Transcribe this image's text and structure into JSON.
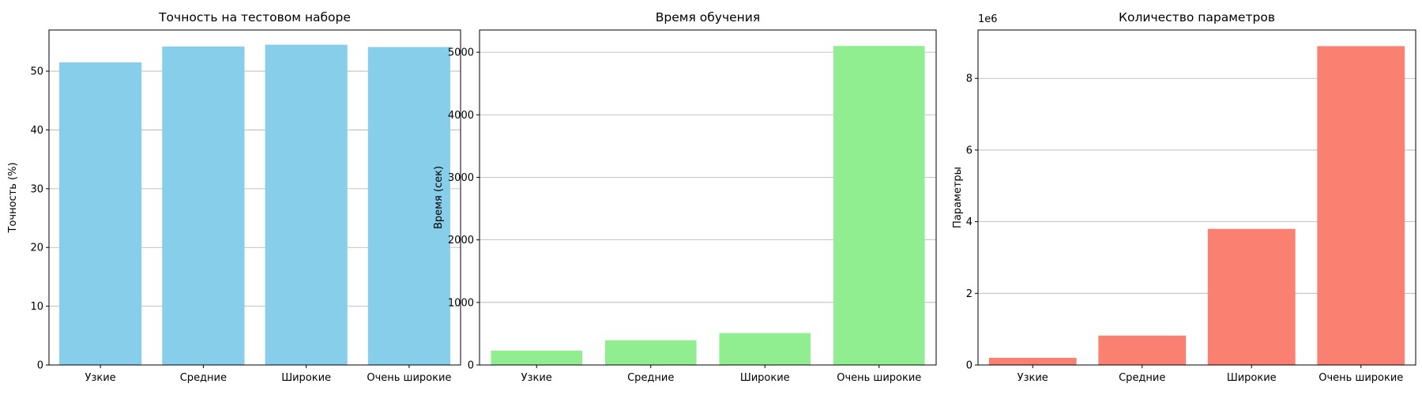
{
  "chart_data": [
    {
      "type": "bar",
      "title": "Точность на тестовом наборе",
      "xlabel": "",
      "ylabel": "Точность (%)",
      "categories": [
        "Узкие",
        "Средние",
        "Широкие",
        "Очень широкие"
      ],
      "values": [
        51.5,
        54.2,
        54.5,
        54.1
      ],
      "ylim": [
        0,
        57
      ],
      "yticks": [
        0,
        10,
        20,
        30,
        40,
        50
      ],
      "ytick_labels": [
        "0",
        "10",
        "20",
        "30",
        "40",
        "50"
      ],
      "offset_label": "",
      "color": "#87ceeb",
      "grid": "y"
    },
    {
      "type": "bar",
      "title": "Время обучения",
      "xlabel": "",
      "ylabel": "Время (сек)",
      "categories": [
        "Узкие",
        "Средние",
        "Широкие",
        "Очень широкие"
      ],
      "values": [
        230,
        395,
        510,
        5100
      ],
      "ylim": [
        0,
        5355
      ],
      "yticks": [
        0,
        1000,
        2000,
        3000,
        4000,
        5000
      ],
      "ytick_labels": [
        "0",
        "1000",
        "2000",
        "3000",
        "4000",
        "5000"
      ],
      "offset_label": "",
      "color": "#90ee90",
      "grid": "y"
    },
    {
      "type": "bar",
      "title": "Количество параметров",
      "xlabel": "",
      "ylabel": "Параметры",
      "categories": [
        "Узкие",
        "Средние",
        "Широкие",
        "Очень широкие"
      ],
      "values": [
        200000,
        820000,
        3800000,
        8900000
      ],
      "ylim": [
        0,
        9350000
      ],
      "yticks": [
        0,
        2000000,
        4000000,
        6000000,
        8000000
      ],
      "ytick_labels": [
        "0",
        "2",
        "4",
        "6",
        "8"
      ],
      "offset_label": "1e6",
      "color": "#fa8072",
      "grid": "y"
    }
  ]
}
